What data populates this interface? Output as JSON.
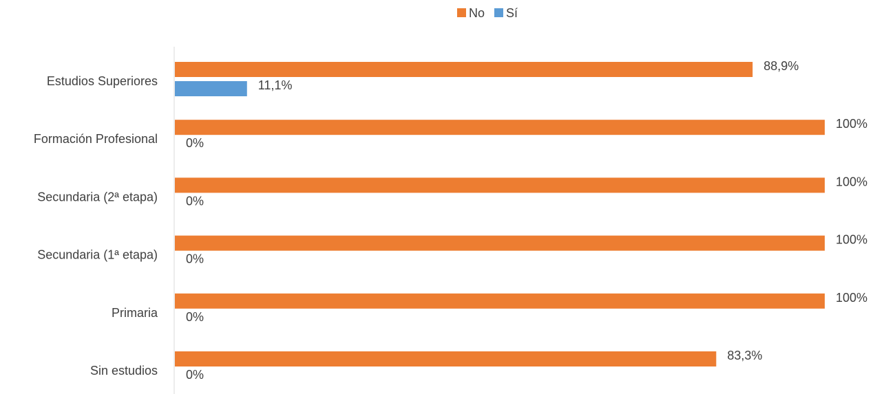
{
  "chart_data": {
    "type": "bar",
    "orientation": "horizontal",
    "categories": [
      "Estudios Superiores",
      "Formación Profesional",
      "Secundaria (2ª etapa)",
      "Secundaria (1ª etapa)",
      "Primaria",
      "Sin estudios"
    ],
    "series": [
      {
        "name": "No",
        "color": "#ED7D31",
        "values": [
          88.9,
          100,
          100,
          100,
          100,
          83.3
        ],
        "labels": [
          "88,9%",
          "100%",
          "100%",
          "100%",
          "100%",
          "83,3%"
        ]
      },
      {
        "name": "Sí",
        "color": "#5B9BD5",
        "values": [
          11.1,
          0,
          0,
          0,
          0,
          0
        ],
        "labels": [
          "11,1%",
          "0%",
          "0%",
          "0%",
          "0%",
          "0%"
        ]
      }
    ],
    "xlim": [
      0,
      100
    ],
    "legend_position": "top-center",
    "grid": false
  }
}
